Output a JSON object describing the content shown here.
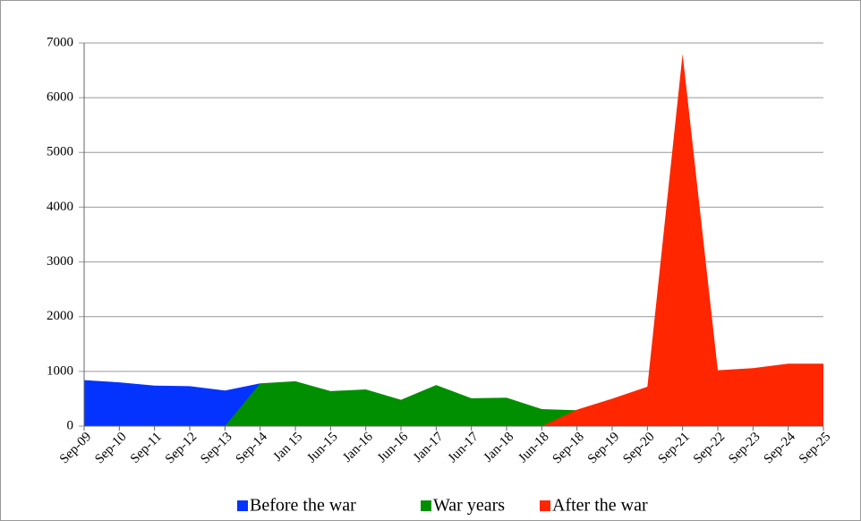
{
  "chart_data": {
    "type": "area",
    "categories": [
      "Sep-09",
      "Sep-10",
      "Sep-11",
      "Sep-12",
      "Sep-13",
      "Sep-14",
      "Jan 15",
      "Jun-15",
      "Jan-16",
      "Jun-16",
      "Jan-17",
      "Jun-17",
      "Jan-18",
      "Jun-18",
      "Sep-18",
      "Sep-19",
      "Sep-20",
      "Sep-21",
      "Sep-22",
      "Sep-23",
      "Sep-24",
      "Sep-25"
    ],
    "series": [
      {
        "name": "Before the war",
        "color": "#0433ff",
        "values": [
          840,
          800,
          740,
          730,
          650,
          780,
          null,
          null,
          null,
          null,
          null,
          null,
          null,
          null,
          null,
          null,
          null,
          null,
          null,
          null,
          null,
          null
        ]
      },
      {
        "name": "War years",
        "color": "#008f00",
        "values": [
          null,
          null,
          null,
          null,
          0,
          780,
          820,
          640,
          670,
          480,
          750,
          510,
          520,
          310,
          290,
          null,
          null,
          null,
          null,
          null,
          null,
          null
        ]
      },
      {
        "name": "After the war",
        "color": "#ff2600",
        "values": [
          null,
          null,
          null,
          null,
          null,
          null,
          null,
          null,
          null,
          null,
          null,
          null,
          null,
          0,
          300,
          500,
          720,
          6800,
          1020,
          1060,
          1140,
          1140
        ]
      }
    ],
    "ylim": [
      0,
      7000
    ],
    "yticks": [
      0,
      1000,
      2000,
      3000,
      4000,
      5000,
      6000,
      7000
    ],
    "grid": true,
    "legend": "bottom"
  }
}
